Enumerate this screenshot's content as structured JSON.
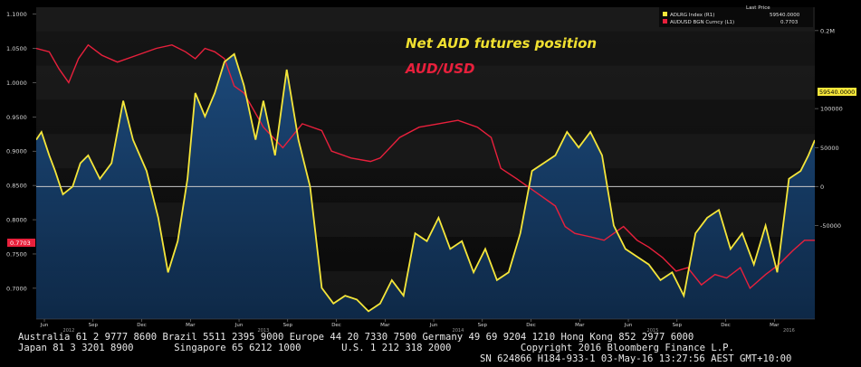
{
  "chart_data": {
    "type": "line",
    "title": "",
    "annotations": [
      {
        "text": "Net AUD futures position",
        "color": "#f0e030"
      },
      {
        "text": "AUD/USD",
        "color": "#e8203c"
      }
    ],
    "legend": {
      "header": "Last Price",
      "placement": "top-right",
      "entries": [
        {
          "name": "ADLRG Index (R1)",
          "value": "59540.0000",
          "color": "#f5e63a"
        },
        {
          "name": "AUDUSD BGN Curncy (L1)",
          "value": "0.7703",
          "color": "#e8203c"
        }
      ]
    },
    "left_axis": {
      "range": [
        0.655,
        1.11
      ],
      "ticks": [
        "0.7000",
        "0.7500",
        "0.8000",
        "0.8500",
        "0.9000",
        "0.9500",
        "1.0000",
        "1.0500",
        "1.1000"
      ],
      "last_label": "0.7703"
    },
    "right_axis": {
      "range": [
        -170000,
        230000
      ],
      "ticks": [
        {
          "value": 200000,
          "label": "0.2M"
        },
        {
          "value": 100000,
          "label": "100000"
        },
        {
          "value": 50000,
          "label": "50000"
        },
        {
          "value": 0,
          "label": "0"
        },
        {
          "value": -50000,
          "label": "-50000"
        }
      ],
      "last_label": "59540.0000"
    },
    "x_axis": {
      "start": 2012.333,
      "end": 2016.333,
      "months": [
        {
          "t": 2012.375,
          "label": "Jun"
        },
        {
          "t": 2012.625,
          "label": "Sep"
        },
        {
          "t": 2012.875,
          "label": "Dec"
        },
        {
          "t": 2013.125,
          "label": "Mar"
        },
        {
          "t": 2013.375,
          "label": "Jun"
        },
        {
          "t": 2013.625,
          "label": "Sep"
        },
        {
          "t": 2013.875,
          "label": "Dec"
        },
        {
          "t": 2014.125,
          "label": "Mar"
        },
        {
          "t": 2014.375,
          "label": "Jun"
        },
        {
          "t": 2014.625,
          "label": "Sep"
        },
        {
          "t": 2014.875,
          "label": "Dec"
        },
        {
          "t": 2015.125,
          "label": "Mar"
        },
        {
          "t": 2015.375,
          "label": "Jun"
        },
        {
          "t": 2015.625,
          "label": "Sep"
        },
        {
          "t": 2015.875,
          "label": "Dec"
        },
        {
          "t": 2016.125,
          "label": "Mar"
        }
      ],
      "years": [
        {
          "t": 2012.5,
          "label": "2012"
        },
        {
          "t": 2013.5,
          "label": "2013"
        },
        {
          "t": 2014.5,
          "label": "2014"
        },
        {
          "t": 2015.5,
          "label": "2015"
        },
        {
          "t": 2016.2,
          "label": "2016"
        }
      ]
    },
    "series": [
      {
        "name": "AUDUSD BGN Curncy (L1)",
        "axis": "left",
        "color": "#e8203c",
        "x": [
          2012.333,
          2012.4,
          2012.45,
          2012.5,
          2012.55,
          2012.6,
          2012.67,
          2012.75,
          2012.85,
          2012.95,
          2013.03,
          2013.1,
          2013.15,
          2013.2,
          2013.25,
          2013.3,
          2013.35,
          2013.4,
          2013.45,
          2013.5,
          2013.55,
          2013.6,
          2013.7,
          2013.8,
          2013.85,
          2013.95,
          2014.05,
          2014.1,
          2014.2,
          2014.3,
          2014.4,
          2014.5,
          2014.6,
          2014.67,
          2014.72,
          2014.8,
          2014.9,
          2015.0,
          2015.05,
          2015.1,
          2015.18,
          2015.25,
          2015.3,
          2015.35,
          2015.42,
          2015.48,
          2015.55,
          2015.62,
          2015.68,
          2015.75,
          2015.82,
          2015.88,
          2015.95,
          2016.0,
          2016.08,
          2016.15,
          2016.22,
          2016.28,
          2016.333
        ],
        "y": [
          1.05,
          1.045,
          1.02,
          1.0,
          1.035,
          1.055,
          1.04,
          1.03,
          1.04,
          1.05,
          1.055,
          1.045,
          1.035,
          1.05,
          1.045,
          1.035,
          0.995,
          0.985,
          0.96,
          0.935,
          0.92,
          0.905,
          0.94,
          0.93,
          0.9,
          0.89,
          0.885,
          0.89,
          0.92,
          0.935,
          0.94,
          0.945,
          0.935,
          0.92,
          0.875,
          0.86,
          0.84,
          0.82,
          0.79,
          0.78,
          0.775,
          0.77,
          0.78,
          0.79,
          0.77,
          0.76,
          0.745,
          0.725,
          0.73,
          0.705,
          0.72,
          0.715,
          0.73,
          0.7,
          0.72,
          0.735,
          0.755,
          0.77,
          0.77
        ]
      },
      {
        "name": "ADLRG Index (R1)",
        "axis": "right",
        "color": "#f5e63a",
        "x": [
          2012.333,
          2012.36,
          2012.4,
          2012.43,
          2012.47,
          2012.52,
          2012.56,
          2012.6,
          2012.66,
          2012.72,
          2012.78,
          2012.83,
          2012.9,
          2012.96,
          2013.01,
          2013.06,
          2013.11,
          2013.15,
          2013.2,
          2013.25,
          2013.3,
          2013.35,
          2013.4,
          2013.46,
          2013.5,
          2013.56,
          2013.62,
          2013.68,
          2013.74,
          2013.8,
          2013.86,
          2013.92,
          2013.98,
          2014.04,
          2014.1,
          2014.16,
          2014.22,
          2014.28,
          2014.34,
          2014.4,
          2014.46,
          2014.52,
          2014.58,
          2014.64,
          2014.7,
          2014.76,
          2014.82,
          2014.88,
          2014.94,
          2015.0,
          2015.06,
          2015.12,
          2015.18,
          2015.24,
          2015.3,
          2015.36,
          2015.42,
          2015.48,
          2015.54,
          2015.6,
          2015.66,
          2015.72,
          2015.78,
          2015.84,
          2015.9,
          2015.96,
          2016.02,
          2016.08,
          2016.14,
          2016.2,
          2016.26,
          2016.3,
          2016.333
        ],
        "y": [
          60000,
          70000,
          40000,
          20000,
          -10000,
          0,
          30000,
          40000,
          10000,
          30000,
          110000,
          60000,
          20000,
          -40000,
          -110000,
          -70000,
          10000,
          120000,
          90000,
          120000,
          160000,
          170000,
          130000,
          60000,
          110000,
          40000,
          150000,
          60000,
          0,
          -130000,
          -150000,
          -140000,
          -145000,
          -160000,
          -150000,
          -120000,
          -140000,
          -60000,
          -70000,
          -40000,
          -80000,
          -70000,
          -110000,
          -80000,
          -120000,
          -110000,
          -60000,
          20000,
          30000,
          40000,
          70000,
          50000,
          70000,
          40000,
          -50000,
          -80000,
          -90000,
          -100000,
          -120000,
          -110000,
          -140000,
          -60000,
          -40000,
          -30000,
          -80000,
          -60000,
          -100000,
          -50000,
          -110000,
          10000,
          20000,
          40000,
          59540
        ]
      }
    ]
  },
  "footer": {
    "line1": "Australia 61 2 9777 8600 Brazil 5511 2395 9000 Europe 44 20 7330 7500 Germany 49 69 9204 1210 Hong Kong 852 2977 6000",
    "line2": "Japan 81 3 3201 8900       Singapore 65 6212 1000       U.S. 1 212 318 2000            Copyright 2016 Bloomberg Finance L.P.",
    "line3": "SN 624866 H184-933-1 03-May-16 13:27:56 AEST GMT+10:00"
  }
}
